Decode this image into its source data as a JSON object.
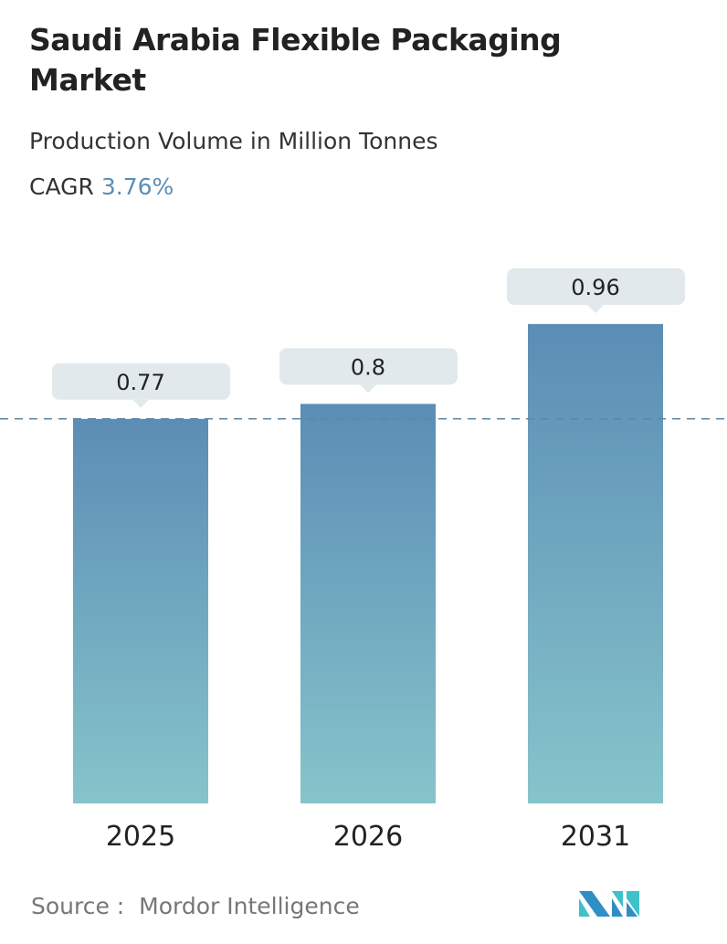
{
  "header": {
    "title": "Saudi Arabia Flexible Packaging Market",
    "subtitle": "Production Volume in Million Tonnes",
    "cagr_label": "CAGR",
    "cagr_value": "3.76%"
  },
  "chart_data": {
    "type": "bar",
    "categories": [
      "2025",
      "2026",
      "2031"
    ],
    "values": [
      0.77,
      0.8,
      0.96
    ],
    "data_labels": [
      "0.77",
      "0.8",
      "0.96"
    ],
    "reference_line": 0.77,
    "grid": false,
    "colors": {
      "bar_top": "#5b8db5",
      "bar_bottom": "#86c4cb",
      "label_box": "#e2e9ec",
      "reference_line": "#5b86a8"
    }
  },
  "footer": {
    "source_label": "Source :",
    "source_value": "Mordor Intelligence",
    "logo_text": "Mordor Intelligence"
  }
}
